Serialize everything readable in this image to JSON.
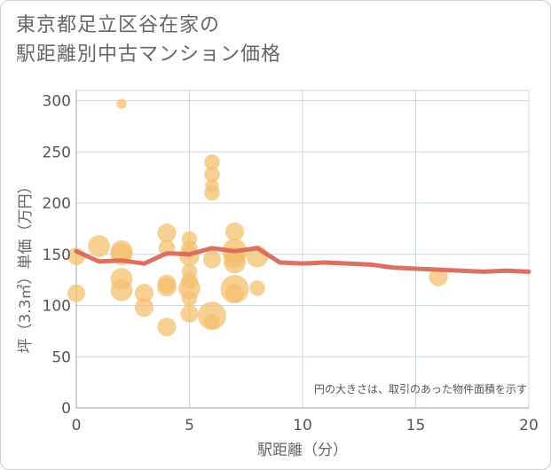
{
  "title_lines": [
    "東京都足立区谷在家の",
    "駅距離別中古マンション価格"
  ],
  "chart_data": {
    "type": "scatter",
    "title": "東京都足立区谷在家の駅距離別中古マンション価格",
    "xlabel": "駅距離（分）",
    "ylabel": "坪（3.3㎡）単価（万円）",
    "xlim": [
      0,
      20
    ],
    "ylim": [
      0,
      310
    ],
    "xticks": [
      0,
      5,
      10,
      15,
      20
    ],
    "yticks": [
      0,
      50,
      100,
      150,
      200,
      250,
      300
    ],
    "grid": true,
    "annotation": "円の大きさは、取引のあった物件面積を示す",
    "bubble_color": "#f4c06f",
    "line_color": "#d9695b",
    "bubbles": [
      {
        "x": 0,
        "y": 148,
        "size": 0.5
      },
      {
        "x": 0,
        "y": 112,
        "size": 0.5
      },
      {
        "x": 1,
        "y": 158,
        "size": 0.7
      },
      {
        "x": 2,
        "y": 297,
        "size": 0.15
      },
      {
        "x": 2,
        "y": 153,
        "size": 0.7
      },
      {
        "x": 2,
        "y": 150,
        "size": 0.7
      },
      {
        "x": 2,
        "y": 126,
        "size": 0.7
      },
      {
        "x": 2,
        "y": 115,
        "size": 0.7
      },
      {
        "x": 3,
        "y": 112,
        "size": 0.55
      },
      {
        "x": 3,
        "y": 98,
        "size": 0.55
      },
      {
        "x": 4,
        "y": 171,
        "size": 0.55
      },
      {
        "x": 4,
        "y": 156,
        "size": 0.45
      },
      {
        "x": 4,
        "y": 121,
        "size": 0.55
      },
      {
        "x": 4,
        "y": 118,
        "size": 0.55
      },
      {
        "x": 4,
        "y": 79,
        "size": 0.55
      },
      {
        "x": 5,
        "y": 165,
        "size": 0.4
      },
      {
        "x": 5,
        "y": 155,
        "size": 0.45
      },
      {
        "x": 5,
        "y": 148,
        "size": 0.6
      },
      {
        "x": 5,
        "y": 133,
        "size": 0.4
      },
      {
        "x": 5,
        "y": 124,
        "size": 0.45
      },
      {
        "x": 5,
        "y": 117,
        "size": 0.7
      },
      {
        "x": 5,
        "y": 107,
        "size": 0.4
      },
      {
        "x": 5,
        "y": 92,
        "size": 0.5
      },
      {
        "x": 6,
        "y": 240,
        "size": 0.4
      },
      {
        "x": 6,
        "y": 228,
        "size": 0.4
      },
      {
        "x": 6,
        "y": 217,
        "size": 0.3
      },
      {
        "x": 6,
        "y": 210,
        "size": 0.4
      },
      {
        "x": 6,
        "y": 145,
        "size": 0.5
      },
      {
        "x": 6,
        "y": 90,
        "size": 1.0
      },
      {
        "x": 6,
        "y": 84,
        "size": 0.4
      },
      {
        "x": 7,
        "y": 172,
        "size": 0.55
      },
      {
        "x": 7,
        "y": 153,
        "size": 0.85
      },
      {
        "x": 7,
        "y": 147,
        "size": 0.7
      },
      {
        "x": 7,
        "y": 142,
        "size": 0.7
      },
      {
        "x": 7,
        "y": 116,
        "size": 1.0
      },
      {
        "x": 7,
        "y": 112,
        "size": 0.55
      },
      {
        "x": 8,
        "y": 148,
        "size": 0.7
      },
      {
        "x": 8,
        "y": 117,
        "size": 0.4
      },
      {
        "x": 16,
        "y": 128,
        "size": 0.55
      }
    ],
    "average_line": {
      "x": [
        0,
        1,
        2,
        3,
        4,
        5,
        6,
        7,
        8,
        9,
        10,
        11,
        12,
        13,
        14,
        15,
        16,
        17,
        18,
        19,
        20
      ],
      "y": [
        153,
        143,
        144,
        141,
        151,
        150,
        156,
        153,
        156,
        142,
        141,
        142,
        141,
        140,
        137,
        136,
        135,
        134,
        133,
        134,
        133
      ]
    }
  }
}
